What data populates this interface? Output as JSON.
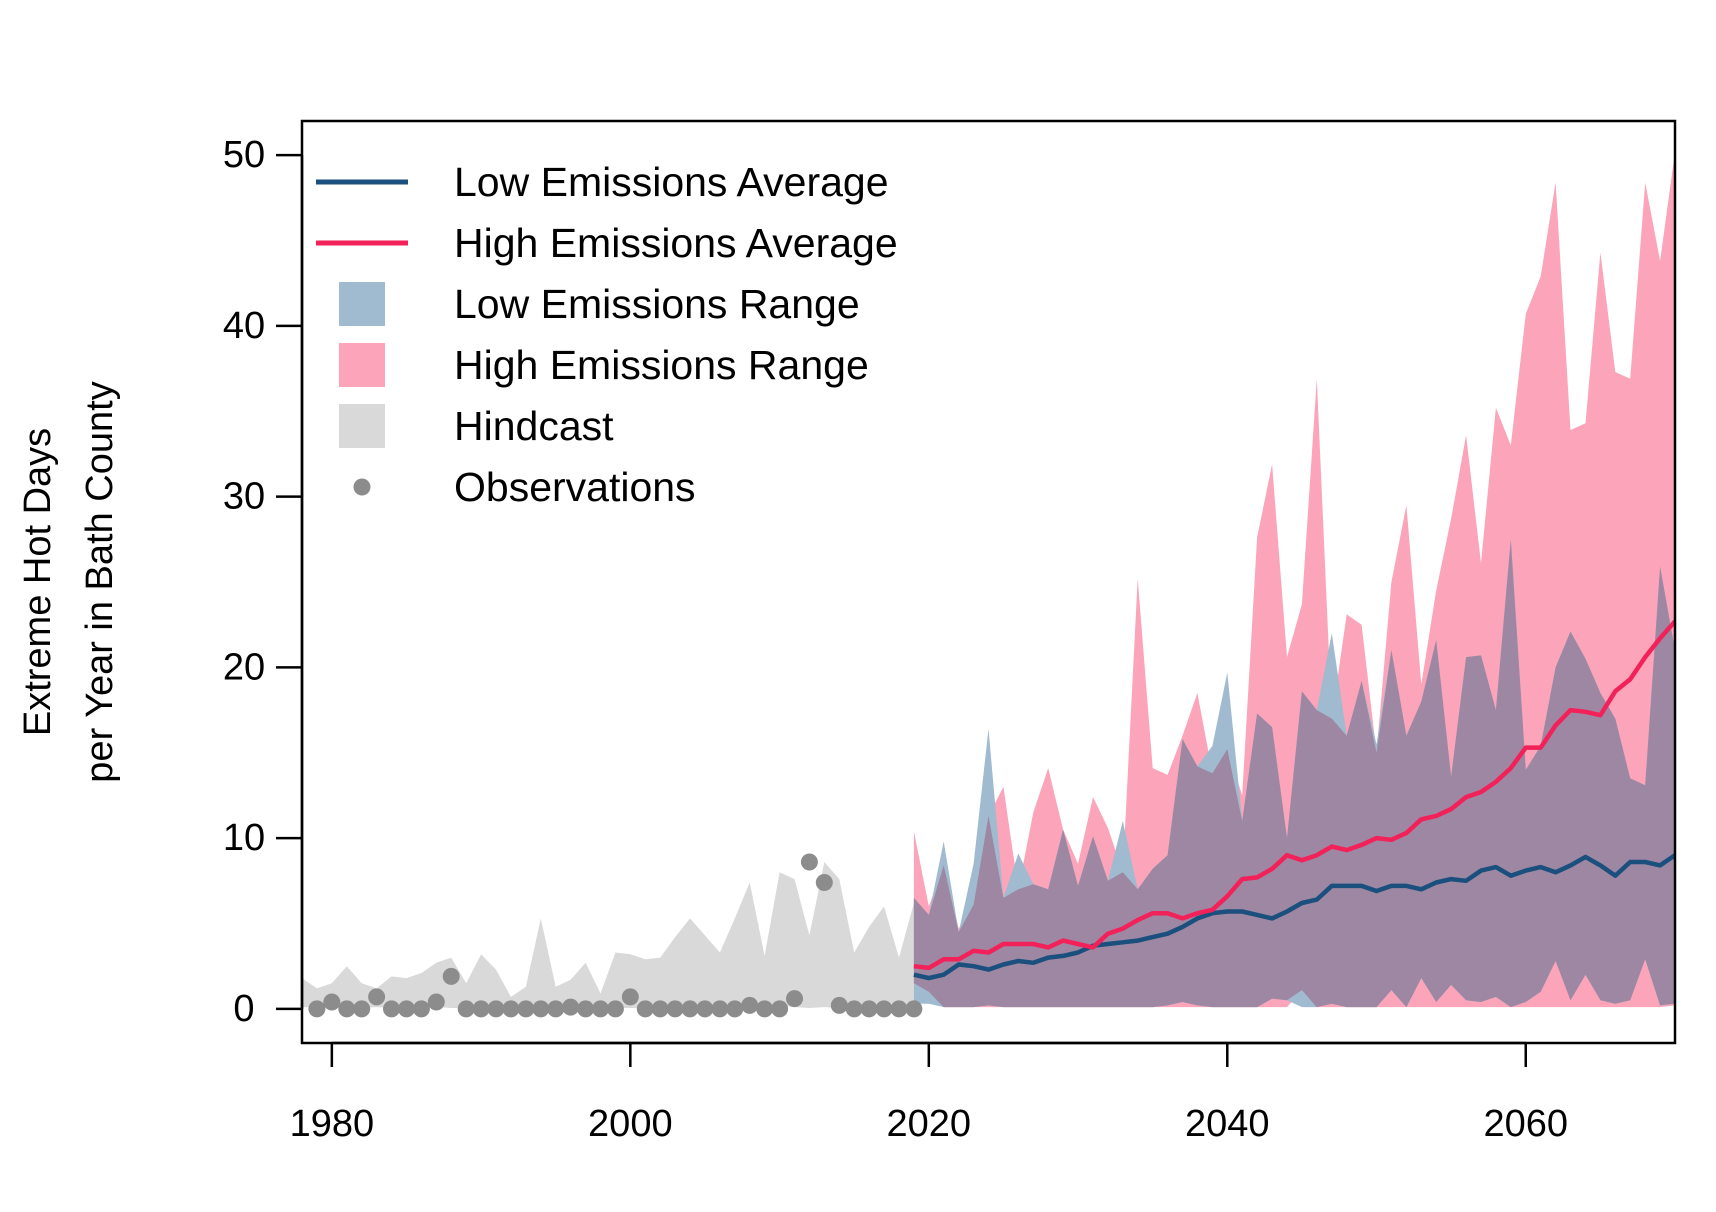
{
  "chart_data": {
    "type": "line",
    "title": "",
    "xlabel": "",
    "ylabel": [
      "Extreme Hot Days",
      "per Year in Bath County"
    ],
    "xlim": [
      1978,
      2070
    ],
    "ylim": [
      -2,
      52
    ],
    "x_ticks": [
      1980,
      2000,
      2020,
      2040,
      2060
    ],
    "y_ticks": [
      0,
      10,
      20,
      30,
      40,
      50
    ],
    "grid": false,
    "legend_position": "top-left",
    "colors": {
      "low_avg": "#1b4f7e",
      "high_avg": "#f2215a",
      "low_range": "#a0bacf",
      "high_range": "#fba4ba",
      "overlap": "#9e87a2",
      "hindcast": "#d9d9d9",
      "observations": "#8c8c8c"
    },
    "legend": [
      {
        "label": "Low Emissions Average",
        "kind": "line",
        "color": "#1b4f7e"
      },
      {
        "label": "High Emissions Average",
        "kind": "line",
        "color": "#f2215a"
      },
      {
        "label": "Low Emissions Range",
        "kind": "box",
        "color": "#a0bacf"
      },
      {
        "label": "High Emissions Range",
        "kind": "box",
        "color": "#fba4ba"
      },
      {
        "label": "Hindcast",
        "kind": "box",
        "color": "#d9d9d9"
      },
      {
        "label": "Observations",
        "kind": "point",
        "color": "#8c8c8c"
      }
    ],
    "hindcast": {
      "x": [
        1978,
        1979,
        1980,
        1981,
        1982,
        1983,
        1984,
        1985,
        1986,
        1987,
        1988,
        1989,
        1990,
        1991,
        1992,
        1993,
        1994,
        1995,
        1996,
        1997,
        1998,
        1999,
        2000,
        2001,
        2002,
        2003,
        2004,
        2005,
        2006,
        2007,
        2008,
        2009,
        2010,
        2011,
        2012,
        2013,
        2014,
        2015,
        2016,
        2017,
        2018,
        2019
      ],
      "upper": [
        1.8,
        1.2,
        1.5,
        2.5,
        1.5,
        1.2,
        1.9,
        1.8,
        2.1,
        2.7,
        3.0,
        1.5,
        3.2,
        2.3,
        0.7,
        1.3,
        5.3,
        1.3,
        1.7,
        2.7,
        0.9,
        3.3,
        3.2,
        2.9,
        3.0,
        4.2,
        5.3,
        4.3,
        3.3,
        5.3,
        7.4,
        3.1,
        8.0,
        7.6,
        4.3,
        8.6,
        7.6,
        3.3,
        4.8,
        6.0,
        3.0,
        6.2
      ],
      "lower": [
        0.1,
        0.1,
        0.1,
        0.05,
        0.05,
        0.1,
        0.05,
        0.05,
        0.05,
        0.1,
        0.05,
        0.05,
        0.05,
        0.05,
        0.05,
        0.05,
        0.05,
        0.05,
        0.05,
        0.05,
        0.05,
        0.05,
        0.05,
        0.05,
        0.05,
        0.05,
        0.05,
        0.05,
        0.05,
        0.05,
        0.05,
        0.05,
        0.2,
        0.1,
        0.05,
        0.1,
        0.05,
        0.05,
        0.05,
        0.05,
        0.05,
        0.05
      ]
    },
    "observations": {
      "x": [
        1979,
        1980,
        1981,
        1982,
        1983,
        1984,
        1985,
        1986,
        1987,
        1988,
        1989,
        1990,
        1991,
        1992,
        1993,
        1994,
        1995,
        1996,
        1997,
        1998,
        1999,
        2000,
        2001,
        2002,
        2003,
        2004,
        2005,
        2006,
        2007,
        2008,
        2009,
        2010,
        2011,
        2012,
        2013,
        2014,
        2015,
        2016,
        2017,
        2018,
        2019
      ],
      "y": [
        0,
        0.4,
        0,
        0,
        0.7,
        0,
        0,
        0,
        0.4,
        1.9,
        0,
        0,
        0,
        0,
        0,
        0,
        0,
        0.1,
        0,
        0,
        0,
        0.7,
        0,
        0,
        0,
        0,
        0,
        0,
        0,
        0.2,
        0,
        0,
        0.6,
        8.6,
        7.4,
        0.2,
        0,
        0,
        0,
        0,
        0
      ]
    },
    "projection_x": [
      2019,
      2020,
      2021,
      2022,
      2023,
      2024,
      2025,
      2026,
      2027,
      2028,
      2029,
      2030,
      2031,
      2032,
      2033,
      2034,
      2035,
      2036,
      2037,
      2038,
      2039,
      2040,
      2041,
      2042,
      2043,
      2044,
      2045,
      2046,
      2047,
      2048,
      2049,
      2050,
      2051,
      2052,
      2053,
      2054,
      2055,
      2056,
      2057,
      2058,
      2059,
      2060,
      2061,
      2062,
      2063,
      2064,
      2065,
      2066,
      2067,
      2068,
      2069,
      2070
    ],
    "low_range_upper": [
      6.5,
      5.5,
      9.8,
      4.5,
      8.5,
      16.4,
      6.5,
      9.1,
      7.3,
      7.0,
      10.5,
      7.2,
      10.1,
      7.5,
      11.0,
      7.0,
      8.2,
      9.0,
      15.8,
      14.2,
      15.4,
      19.7,
      11.0,
      17.3,
      16.5,
      10.0,
      18.6,
      17.5,
      22.0,
      16.0,
      19.2,
      15.5,
      21.0,
      16.0,
      18.0,
      21.6,
      13.6,
      20.6,
      20.7,
      17.5,
      27.5,
      14.0,
      15.4,
      20.0,
      22.1,
      20.5,
      18.5,
      17.0,
      13.5,
      13.1,
      25.9,
      21.0
    ],
    "low_range_lower": [
      0.3,
      0.3,
      0.1,
      0.1,
      0.1,
      0.2,
      0.1,
      0.1,
      0.1,
      0.1,
      0.1,
      0.1,
      0.1,
      0.1,
      0.1,
      0.1,
      0.1,
      0.2,
      0.4,
      0.2,
      0.1,
      0.1,
      0.1,
      0.1,
      0.6,
      0.5,
      0.1,
      0.1,
      0.3,
      0.1,
      0.1,
      0.1,
      1.1,
      0.1,
      1.8,
      0.4,
      1.4,
      0.5,
      0.4,
      0.7,
      0.1,
      0.4,
      1.0,
      2.8,
      0.5,
      2.0,
      0.5,
      0.3,
      0.5,
      2.9,
      0.2,
      0.3
    ],
    "high_range_upper": [
      10.4,
      6.0,
      8.4,
      4.7,
      6.1,
      11.3,
      13.0,
      7.0,
      11.5,
      14.1,
      10.5,
      8.5,
      12.4,
      10.6,
      8.0,
      25.2,
      14.1,
      13.7,
      16.0,
      18.5,
      13.8,
      15.2,
      12.5,
      27.6,
      31.9,
      20.6,
      23.7,
      36.9,
      17.0,
      23.1,
      22.5,
      15.0,
      25.0,
      29.5,
      19.0,
      24.5,
      28.7,
      33.6,
      26.1,
      35.2,
      33.0,
      40.7,
      42.9,
      48.4,
      33.9,
      34.3,
      44.3,
      37.3,
      36.9,
      48.4,
      43.8,
      50.2
    ],
    "high_range_lower": [
      1.5,
      1.0,
      0.1,
      0.1,
      0.1,
      0.1,
      0.1,
      0.1,
      0.1,
      0.1,
      0.1,
      0.1,
      0.1,
      0.1,
      0.1,
      0.1,
      0.1,
      0.1,
      0.1,
      0.1,
      0.1,
      0.1,
      0.1,
      0.1,
      0.1,
      0.1,
      1.1,
      0.1,
      0.1,
      0.1,
      0.1,
      0.1,
      0.1,
      0.1,
      0.1,
      0.1,
      0.1,
      0.1,
      0.1,
      0.1,
      0.1,
      0.1,
      0.1,
      0.1,
      0.1,
      0.1,
      0.1,
      0.1,
      0.1,
      0.1,
      0.1,
      0.2
    ],
    "series": [
      {
        "name": "Low Emissions Average",
        "color": "#1b4f7e",
        "values": [
          2.0,
          1.8,
          2.0,
          2.6,
          2.5,
          2.3,
          2.6,
          2.8,
          2.7,
          3.0,
          3.1,
          3.3,
          3.7,
          3.8,
          3.9,
          4.0,
          4.2,
          4.4,
          4.8,
          5.3,
          5.6,
          5.7,
          5.7,
          5.5,
          5.3,
          5.7,
          6.2,
          6.4,
          7.2,
          7.2,
          7.2,
          6.9,
          7.2,
          7.2,
          7.0,
          7.4,
          7.6,
          7.5,
          8.1,
          8.3,
          7.8,
          8.1,
          8.3,
          8.0,
          8.4,
          8.9,
          8.4,
          7.8,
          8.6,
          8.6,
          8.4,
          9.0
        ]
      },
      {
        "name": "High Emissions Average",
        "color": "#f2215a",
        "values": [
          2.5,
          2.4,
          2.9,
          2.9,
          3.4,
          3.3,
          3.8,
          3.8,
          3.8,
          3.6,
          4.0,
          3.8,
          3.6,
          4.4,
          4.7,
          5.2,
          5.6,
          5.6,
          5.3,
          5.6,
          5.8,
          6.6,
          7.6,
          7.7,
          8.2,
          9.0,
          8.7,
          9.0,
          9.5,
          9.3,
          9.6,
          10.0,
          9.9,
          10.3,
          11.1,
          11.3,
          11.7,
          12.4,
          12.7,
          13.3,
          14.1,
          15.3,
          15.3,
          16.6,
          17.5,
          17.4,
          17.2,
          18.6,
          19.3,
          20.6,
          21.7,
          22.7
        ]
      }
    ]
  }
}
